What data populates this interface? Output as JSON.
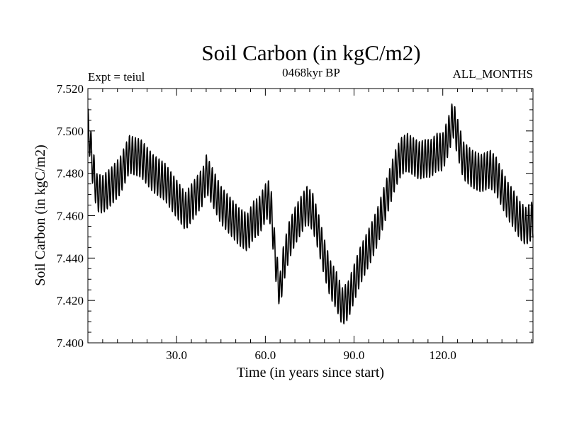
{
  "chart_data": {
    "type": "line",
    "title": "Soil Carbon (in kgC/m2)",
    "subtitle": "0468kyr BP",
    "left_annotation": "Expt = teiul",
    "right_annotation": "ALL_MONTHS",
    "xlabel": "Time (in years since start)",
    "ylabel": "Soil Carbon (in kgC/m2)",
    "xlim": [
      0,
      150.5
    ],
    "ylim": [
      7.4,
      7.52
    ],
    "x_ticks": [
      30,
      60,
      90,
      120
    ],
    "x_tick_labels": [
      "30.0",
      "60.0",
      "90.0",
      "120.0"
    ],
    "y_ticks": [
      7.4,
      7.42,
      7.44,
      7.46,
      7.48,
      7.5,
      7.52
    ],
    "y_tick_labels": [
      "7.400",
      "7.420",
      "7.440",
      "7.460",
      "7.480",
      "7.500",
      "7.520"
    ],
    "seasonal_amplitude": 0.009,
    "series": [
      {
        "name": "Soil Carbon",
        "color": "#000000",
        "envelope_x": [
          0,
          0.5,
          1.5,
          3,
          5,
          8,
          11,
          14,
          18,
          22,
          26,
          30,
          33,
          36,
          39,
          40,
          42,
          45,
          48,
          51,
          54,
          56,
          58,
          60,
          61,
          62,
          63,
          64,
          65,
          66,
          68,
          70,
          72,
          74,
          76,
          78,
          80,
          82,
          84,
          86,
          88,
          90,
          92,
          94,
          96,
          98,
          100,
          102,
          104,
          106,
          108,
          110,
          112,
          114,
          116,
          118,
          120,
          122,
          123.5,
          125,
          127,
          130,
          133,
          136,
          138,
          140,
          142,
          144,
          146,
          148,
          150.5
        ],
        "envelope_y": [
          7.502,
          7.498,
          7.485,
          7.471,
          7.47,
          7.474,
          7.479,
          7.489,
          7.487,
          7.48,
          7.476,
          7.468,
          7.462,
          7.468,
          7.474,
          7.48,
          7.474,
          7.465,
          7.46,
          7.455,
          7.452,
          7.458,
          7.46,
          7.466,
          7.468,
          7.463,
          7.446,
          7.432,
          7.424,
          7.436,
          7.448,
          7.455,
          7.46,
          7.465,
          7.462,
          7.452,
          7.44,
          7.43,
          7.425,
          7.417,
          7.42,
          7.428,
          7.436,
          7.442,
          7.448,
          7.455,
          7.464,
          7.473,
          7.482,
          7.488,
          7.49,
          7.488,
          7.486,
          7.487,
          7.487,
          7.49,
          7.49,
          7.498,
          7.506,
          7.497,
          7.486,
          7.482,
          7.48,
          7.482,
          7.479,
          7.473,
          7.467,
          7.463,
          7.458,
          7.455,
          7.458
        ]
      }
    ]
  }
}
